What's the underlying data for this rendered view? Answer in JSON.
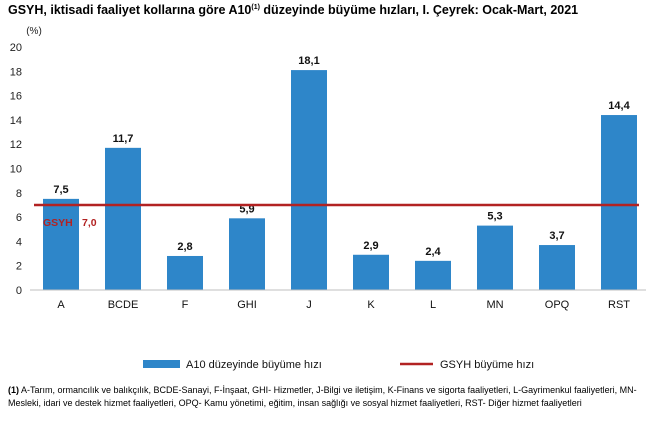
{
  "title": {
    "pre": "GSYH, iktisadi faaliyet kollarına göre A10",
    "sup": "(1)",
    "post": " düzeyinde büyüme hızları, I. Çeyrek: Ocak-Mart, 2021"
  },
  "footnote": {
    "marker": "(1)",
    "text": " A-Tarım, ormancılık ve balıkçılık, BCDE-Sanayi, F-İnşaat, GHI- Hizmetler, J-Bilgi ve iletişim, K-Finans ve sigorta faaliyetleri, L-Gayrimenkul faaliyetleri, MN- Mesleki, idari ve destek hizmet faaliyetleri, OPQ- Kamu yönetimi, eğitim, insan sağlığı ve sosyal hizmet faaliyetleri, RST- Diğer hizmet faaliyetleri"
  },
  "chart_data": {
    "type": "bar",
    "unit_label": "(%)",
    "categories": [
      "A",
      "BCDE",
      "F",
      "GHI",
      "J",
      "K",
      "L",
      "MN",
      "OPQ",
      "RST"
    ],
    "series": [
      {
        "name": "A10 düzeyinde büyüme hızı",
        "values": [
          7.5,
          11.7,
          2.8,
          5.9,
          18.1,
          2.9,
          2.4,
          5.3,
          3.7,
          14.4
        ],
        "color": "#2e86c9"
      }
    ],
    "data_labels": [
      "7,5",
      "11,7",
      "2,8",
      "5,9",
      "18,1",
      "2,9",
      "2,4",
      "5,3",
      "3,7",
      "14,4"
    ],
    "reference_line": {
      "name": "GSYH büyüme hızı",
      "label_prefix": "GSYH",
      "label_value": "7,0",
      "value": 7.0,
      "color": "#b22222"
    },
    "ylim": [
      0,
      20
    ],
    "yticks": [
      0,
      2,
      4,
      6,
      8,
      10,
      12,
      14,
      16,
      18,
      20
    ],
    "grid": false,
    "legend_position": "bottom"
  }
}
